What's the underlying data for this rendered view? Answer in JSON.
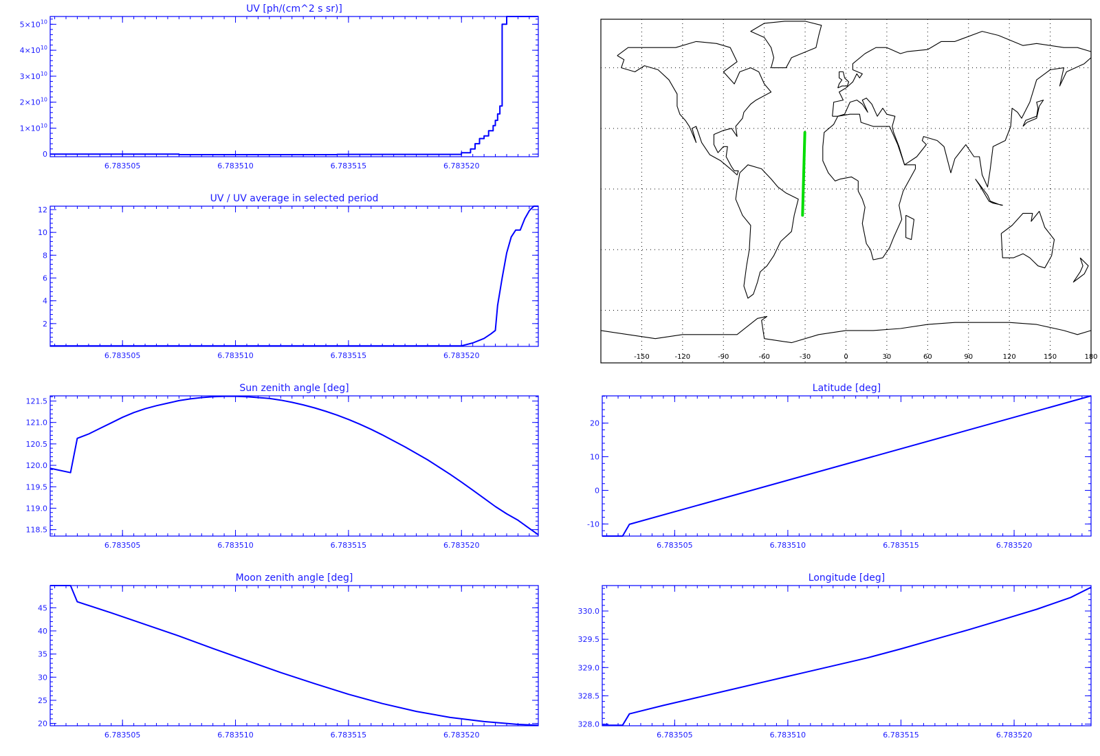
{
  "colors": {
    "axis": "#0000ff",
    "series": "#0000ff",
    "text": "#1a1aff",
    "track": "#00dd00",
    "coast": "#000000",
    "grid": "#000000"
  },
  "map": {
    "lon_ticks": [
      "-150",
      "-120",
      "-90",
      "-60",
      "-30",
      "0",
      "30",
      "60",
      "90",
      "120",
      "150",
      "180"
    ],
    "lon_values": [
      -150,
      -120,
      -90,
      -60,
      -30,
      0,
      30,
      60,
      90,
      120,
      150,
      180
    ],
    "lat_grid": [
      60,
      30,
      0,
      -30,
      -60
    ],
    "track": [
      [
        -30.2,
        28
      ],
      [
        -31.9,
        -13
      ]
    ]
  },
  "chart_data": [
    {
      "id": "uv",
      "type": "line",
      "title": "UV [ph/(cm^2 s sr)]",
      "xlim": [
        6.7835018,
        6.7835234
      ],
      "ylim": [
        -1000000000.0,
        53000000000.0
      ],
      "x_ticks": [
        6.783505,
        6.78351,
        6.783515,
        6.78352
      ],
      "x_tick_labels": [
        "6.783505",
        "6.783510",
        "6.783515",
        "6.783520"
      ],
      "y_ticks": [
        0,
        10000000000.0,
        20000000000.0,
        30000000000.0,
        40000000000.0,
        50000000000.0
      ],
      "y_tick_labels": [
        {
          "base": "0",
          "exp": ""
        },
        {
          "base": "1×10",
          "exp": "10"
        },
        {
          "base": "2×10",
          "exp": "10"
        },
        {
          "base": "3×10",
          "exp": "10"
        },
        {
          "base": "4×10",
          "exp": "10"
        },
        {
          "base": "5×10",
          "exp": "10"
        }
      ],
      "step": true,
      "x": [
        6.7835018,
        6.7835075,
        6.7835075,
        6.7835145,
        6.7835145,
        6.78352,
        6.78352,
        6.7835204,
        6.7835206,
        6.7835208,
        6.783521,
        6.7835212,
        6.7835214,
        6.7835215,
        6.7835216,
        6.7835217,
        6.7835218,
        6.783522,
        6.7835234
      ],
      "y": [
        0.0,
        0.0,
        -200000000.0,
        -200000000.0,
        -100000000.0,
        0.0,
        500000000.0,
        2000000000.0,
        4000000000.0,
        6000000000.0,
        7000000000.0,
        9000000000.0,
        11000000000.0,
        13000000000.0,
        15500000000.0,
        18500000000.0,
        50000000000.0,
        53000000000.0,
        53000000000.0
      ]
    },
    {
      "id": "uvavg",
      "type": "line",
      "title": "UV / UV average in selected period",
      "xlim": [
        6.7835018,
        6.7835234
      ],
      "ylim": [
        0,
        12.3
      ],
      "x_ticks": [
        6.783505,
        6.78351,
        6.783515,
        6.78352
      ],
      "x_tick_labels": [
        "6.783505",
        "6.783510",
        "6.783515",
        "6.783520"
      ],
      "y_ticks": [
        2,
        4,
        6,
        8,
        10,
        12
      ],
      "y_tick_labels": [
        "2",
        "4",
        "6",
        "8",
        "10",
        "12"
      ],
      "x": [
        6.7835018,
        6.78352,
        6.7835205,
        6.783521,
        6.7835213,
        6.7835215,
        6.7835216,
        6.7835218,
        6.783522,
        6.7835222,
        6.7835224,
        6.7835226,
        6.7835228,
        6.783523,
        6.7835232,
        6.7835234
      ],
      "y": [
        0.05,
        0.05,
        0.3,
        0.7,
        1.1,
        1.4,
        3.6,
        6.0,
        8.2,
        9.6,
        10.2,
        10.2,
        11.2,
        11.9,
        12.3,
        12.3
      ]
    },
    {
      "id": "sza",
      "type": "line",
      "title": "Sun zenith angle [deg]",
      "xlim": [
        6.7835018,
        6.7835234
      ],
      "ylim": [
        118.35,
        121.62
      ],
      "x_ticks": [
        6.783505,
        6.78351,
        6.783515,
        6.78352
      ],
      "x_tick_labels": [
        "6.783505",
        "6.783510",
        "6.783515",
        "6.783520"
      ],
      "y_ticks": [
        118.5,
        119.0,
        119.5,
        120.0,
        120.5,
        121.0,
        121.5
      ],
      "y_tick_labels": [
        "118.5",
        "119.0",
        "119.5",
        "120.0",
        "120.5",
        "121.0",
        "121.5"
      ],
      "x": [
        6.7835018,
        6.7835027,
        6.783503,
        6.7835035,
        6.783504,
        6.7835045,
        6.783505,
        6.7835055,
        6.783506,
        6.7835065,
        6.783507,
        6.7835075,
        6.783508,
        6.7835085,
        6.783509,
        6.7835095,
        6.78351,
        6.7835105,
        6.783511,
        6.7835115,
        6.783512,
        6.7835125,
        6.783513,
        6.7835135,
        6.783514,
        6.7835145,
        6.783515,
        6.7835155,
        6.783516,
        6.7835165,
        6.783517,
        6.7835175,
        6.783518,
        6.7835185,
        6.783519,
        6.7835195,
        6.78352,
        6.7835205,
        6.783521,
        6.7835215,
        6.783522,
        6.7835225,
        6.783523,
        6.7835234
      ],
      "y": [
        119.93,
        119.83,
        120.63,
        120.73,
        120.86,
        120.99,
        121.12,
        121.23,
        121.32,
        121.39,
        121.45,
        121.51,
        121.55,
        121.58,
        121.6,
        121.61,
        121.61,
        121.6,
        121.58,
        121.56,
        121.52,
        121.47,
        121.41,
        121.34,
        121.26,
        121.17,
        121.07,
        120.96,
        120.84,
        120.71,
        120.57,
        120.43,
        120.28,
        120.13,
        119.96,
        119.79,
        119.61,
        119.42,
        119.23,
        119.04,
        118.87,
        118.72,
        118.53,
        118.38
      ]
    },
    {
      "id": "lat",
      "type": "line",
      "title": "Latitude [deg]",
      "xlim": [
        6.7835018,
        6.7835234
      ],
      "ylim": [
        -13.6,
        28.1
      ],
      "x_ticks": [
        6.783505,
        6.78351,
        6.783515,
        6.78352
      ],
      "x_tick_labels": [
        "6.783505",
        "6.783510",
        "6.783515",
        "6.783520"
      ],
      "y_ticks": [
        -10,
        0,
        10,
        20
      ],
      "y_tick_labels": [
        "-10",
        "0",
        "10",
        "20"
      ],
      "x": [
        6.7835018,
        6.7835027,
        6.783503,
        6.7835234
      ],
      "y": [
        -13.6,
        -13.6,
        -10.1,
        28.1
      ]
    },
    {
      "id": "mza",
      "type": "line",
      "title": "Moon zenith angle [deg]",
      "xlim": [
        6.7835018,
        6.7835234
      ],
      "ylim": [
        19.5,
        49.8
      ],
      "x_ticks": [
        6.783505,
        6.78351,
        6.783515,
        6.78352
      ],
      "x_tick_labels": [
        "6.783505",
        "6.783510",
        "6.783515",
        "6.783520"
      ],
      "y_ticks": [
        20,
        25,
        30,
        35,
        40,
        45
      ],
      "y_tick_labels": [
        "20",
        "25",
        "30",
        "35",
        "40",
        "45"
      ],
      "x": [
        6.7835018,
        6.7835027,
        6.783503,
        6.7835045,
        6.783506,
        6.7835075,
        6.783509,
        6.7835105,
        6.783512,
        6.7835135,
        6.783515,
        6.7835165,
        6.783518,
        6.7835195,
        6.783521,
        6.7835225,
        6.7835234
      ],
      "y": [
        49.8,
        49.8,
        46.3,
        43.9,
        41.4,
        38.9,
        36.2,
        33.6,
        31.0,
        28.6,
        26.3,
        24.3,
        22.6,
        21.3,
        20.4,
        19.8,
        19.6
      ]
    },
    {
      "id": "lon",
      "type": "line",
      "title": "Longitude [deg]",
      "xlim": [
        6.7835018,
        6.7835234
      ],
      "ylim": [
        327.97,
        330.45
      ],
      "x_ticks": [
        6.783505,
        6.78351,
        6.783515,
        6.78352
      ],
      "x_tick_labels": [
        "6.783505",
        "6.783510",
        "6.783515",
        "6.783520"
      ],
      "y_ticks": [
        328.0,
        328.5,
        329.0,
        329.5,
        330.0
      ],
      "y_tick_labels": [
        "328.0",
        "328.5",
        "329.0",
        "329.5",
        "330.0"
      ],
      "x": [
        6.7835018,
        6.7835027,
        6.783503,
        6.7835045,
        6.783506,
        6.7835075,
        6.783509,
        6.7835105,
        6.783512,
        6.7835135,
        6.783515,
        6.7835165,
        6.783518,
        6.7835195,
        6.783521,
        6.7835225,
        6.7835234
      ],
      "y": [
        327.98,
        327.98,
        328.18,
        328.33,
        328.47,
        328.61,
        328.75,
        328.89,
        329.03,
        329.17,
        329.33,
        329.5,
        329.67,
        329.85,
        330.03,
        330.24,
        330.42
      ]
    }
  ]
}
